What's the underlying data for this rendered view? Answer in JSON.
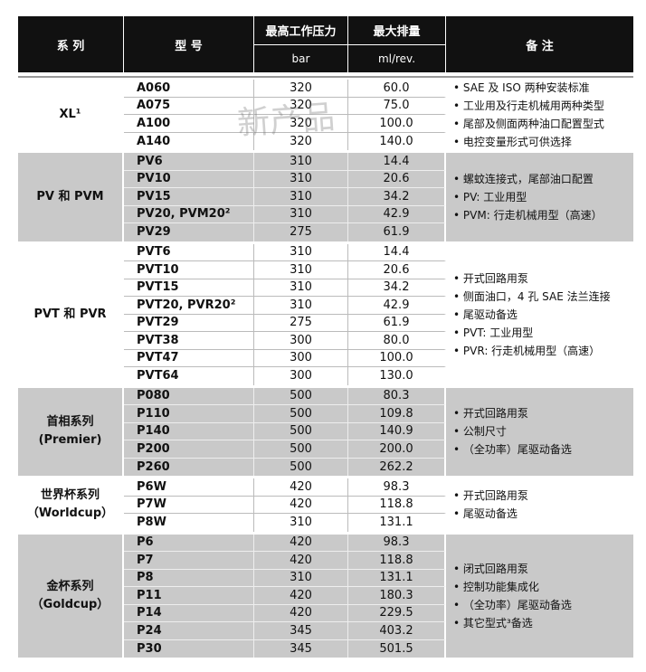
{
  "header": {
    "series": "系 列",
    "model": "型 号",
    "pressure": "最高工作压力",
    "pressure_unit": "bar",
    "displacement": "最大排量",
    "displacement_unit": "ml/rev.",
    "notes": "备 注"
  },
  "watermark": "新产品",
  "groups": [
    {
      "series": [
        "XL¹"
      ],
      "rows": [
        [
          "A060",
          320,
          "60.0"
        ],
        [
          "A075",
          320,
          "75.0"
        ],
        [
          "A100",
          320,
          "100.0"
        ],
        [
          "A140",
          320,
          "140.0"
        ]
      ],
      "notes": [
        "SAE 及 ISO 两种安装标准",
        "工业用及行走机械用两种类型",
        "尾部及侧面两种油口配置型式",
        "电控变量形式可供选择"
      ]
    },
    {
      "series": [
        "PV 和 PVM"
      ],
      "rows": [
        [
          "PV6",
          310,
          "14.4"
        ],
        [
          "PV10",
          310,
          "20.6"
        ],
        [
          "PV15",
          310,
          "34.2"
        ],
        [
          "PV20, PVM20²",
          310,
          "42.9"
        ],
        [
          "PV29",
          275,
          "61.9"
        ]
      ],
      "notes": [
        "螺蚊连接式，尾部油口配置",
        "PV: 工业用型",
        "PVM: 行走机械用型（高速）"
      ]
    },
    {
      "series": [
        "PVT 和 PVR"
      ],
      "rows": [
        [
          "PVT6",
          310,
          "14.4"
        ],
        [
          "PVT10",
          310,
          "20.6"
        ],
        [
          "PVT15",
          310,
          "34.2"
        ],
        [
          "PVT20, PVR20²",
          310,
          "42.9"
        ],
        [
          "PVT29",
          275,
          "61.9"
        ],
        [
          "PVT38",
          300,
          "80.0"
        ],
        [
          "PVT47",
          300,
          "100.0"
        ],
        [
          "PVT64",
          300,
          "130.0"
        ]
      ],
      "notes": [
        "开式回路用泵",
        "侧面油口，4 孔 SAE 法兰连接",
        "尾驱动备选",
        "PVT: 工业用型",
        "PVR: 行走机械用型（高速）"
      ]
    },
    {
      "series": [
        "首相系列",
        "(Premier)"
      ],
      "rows": [
        [
          "P080",
          500,
          "80.3"
        ],
        [
          "P110",
          500,
          "109.8"
        ],
        [
          "P140",
          500,
          "140.9"
        ],
        [
          "P200",
          500,
          "200.0"
        ],
        [
          "P260",
          500,
          "262.2"
        ]
      ],
      "notes": [
        "开式回路用泵",
        "公制尺寸",
        "（全功率）尾驱动备选"
      ]
    },
    {
      "series": [
        "世界杯系列",
        "（Worldcup）"
      ],
      "rows": [
        [
          "P6W",
          420,
          "98.3"
        ],
        [
          "P7W",
          420,
          "118.8"
        ],
        [
          "P8W",
          310,
          "131.1"
        ]
      ],
      "notes": [
        "开式回路用泵",
        "尾驱动备选"
      ]
    },
    {
      "series": [
        "金杯系列",
        "（Goldcup）"
      ],
      "rows": [
        [
          "P6",
          420,
          "98.3"
        ],
        [
          "P7",
          420,
          "118.8"
        ],
        [
          "P8",
          310,
          "131.1"
        ],
        [
          "P11",
          420,
          "180.3"
        ],
        [
          "P14",
          420,
          "229.5"
        ],
        [
          "P24",
          345,
          "403.2"
        ],
        [
          "P30",
          345,
          "501.5"
        ]
      ],
      "notes": [
        "闭式回路用泵",
        "控制功能集成化",
        "（全功率）尾驱动备选",
        "其它型式³备选"
      ]
    }
  ]
}
